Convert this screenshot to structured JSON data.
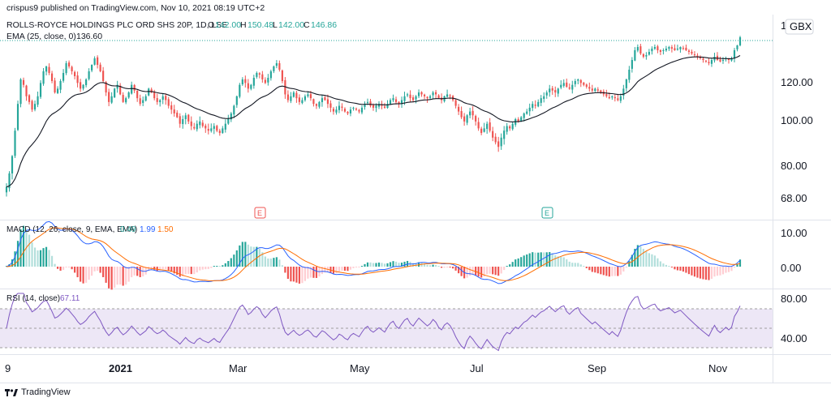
{
  "header": {
    "publisher": "crispus9 published on TradingView.com, Nov 10, 2021 08:19 UTC+2",
    "symbol": "ROLLS-ROYCE HOLDINGS PLC ORD SHS 20P, 1D, LSE",
    "ohlc": {
      "o_label": "O",
      "o": "142.00",
      "h_label": "H",
      "h": "150.48",
      "l_label": "L",
      "l": "142.00",
      "c_label": "C",
      "c": "146.86"
    },
    "ema_label": "EMA (25, close, 0)",
    "ema_value": "136.60",
    "currency": "GBX",
    "currency_prefix": "1"
  },
  "macd": {
    "label": "MACD (12, 26, close, 9, EMA, EMA)",
    "v1": "0.49",
    "v2": "1.99",
    "v3": "1.50"
  },
  "rsi": {
    "label": "RSI (14, close)",
    "value": "67.11"
  },
  "footer": {
    "brand": "TradingView"
  },
  "markers": [
    {
      "letter": "E",
      "kind": "red"
    },
    {
      "letter": "E",
      "kind": "green"
    }
  ],
  "colors": {
    "up": "#26a69a",
    "down": "#ef5350",
    "ema": "#131722",
    "macd": "#2962ff",
    "signal": "#ff6d00",
    "rsi": "#7e57c2",
    "rsi_band": "#ede7f6",
    "grid": "#f0f3fa",
    "axis_text": "#131722"
  },
  "chart_data": [
    {
      "type": "candlestick",
      "title": "ROLLS-ROYCE HOLDINGS PLC ORD SHS 20P, 1D, LSE",
      "ylim": [
        60,
        155
      ],
      "y_ticks": [
        "68.00",
        "80.00",
        "100.00",
        "120.00",
        "1"
      ],
      "x_ticks": [
        "9",
        "2021",
        "Mar",
        "May",
        "Jul",
        "Sep",
        "Nov"
      ],
      "series_close": [
        72,
        77,
        84,
        95,
        108,
        121,
        118,
        112,
        109,
        105,
        108,
        112,
        119,
        126,
        129,
        125,
        120,
        114,
        116,
        120,
        125,
        131,
        129,
        126,
        123,
        119,
        116,
        118,
        121,
        126,
        130,
        134,
        130,
        126,
        120,
        114,
        109,
        112,
        116,
        118,
        113,
        109,
        111,
        114,
        118,
        115,
        111,
        108,
        110,
        112,
        116,
        114,
        111,
        109,
        110,
        112,
        110,
        107,
        105,
        103,
        101,
        98,
        100,
        102,
        99,
        97,
        96,
        98,
        99,
        97,
        96,
        95,
        96,
        97,
        95,
        94,
        96,
        98,
        100,
        103,
        107,
        112,
        118,
        121,
        119,
        116,
        118,
        122,
        125,
        124,
        121,
        119,
        122,
        126,
        129,
        131,
        127,
        120,
        113,
        110,
        112,
        114,
        111,
        109,
        110,
        112,
        113,
        111,
        108,
        107,
        109,
        111,
        110,
        108,
        106,
        104,
        105,
        107,
        106,
        104,
        103,
        105,
        106,
        105,
        104,
        106,
        108,
        109,
        107,
        106,
        107,
        108,
        107,
        106,
        108,
        110,
        111,
        109,
        108,
        110,
        112,
        113,
        111,
        110,
        112,
        114,
        113,
        112,
        111,
        112,
        114,
        113,
        111,
        110,
        112,
        113,
        112,
        110,
        107,
        104,
        101,
        99,
        102,
        104,
        102,
        99,
        96,
        94,
        96,
        98,
        95,
        92,
        90,
        88,
        92,
        95,
        97,
        96,
        98,
        100,
        99,
        101,
        103,
        104,
        106,
        108,
        107,
        109,
        111,
        112,
        114,
        116,
        115,
        114,
        116,
        118,
        119,
        117,
        116,
        118,
        120,
        121,
        119,
        118,
        117,
        116,
        115,
        116,
        115,
        114,
        113,
        112,
        111,
        112,
        111,
        110,
        112,
        116,
        121,
        127,
        133,
        139,
        141,
        137,
        135,
        136,
        138,
        140,
        141,
        139,
        138,
        139,
        140,
        141,
        140,
        139,
        140,
        141,
        140,
        139,
        138,
        137,
        136,
        135,
        134,
        133,
        132,
        131,
        133,
        135,
        133,
        132,
        133,
        134,
        133,
        134,
        139,
        142,
        147
      ],
      "ema": {
        "name": "EMA (25, close, 0)",
        "last": 136.6
      }
    },
    {
      "type": "line",
      "title": "MACD (12, 26, close, 9, EMA, EMA)",
      "ylim": [
        -10,
        12
      ],
      "y_ticks": [
        "10.00",
        "0.00"
      ],
      "series": [
        {
          "name": "MACD",
          "last": 1.99
        },
        {
          "name": "Signal",
          "last": 1.5
        },
        {
          "name": "Histogram",
          "last": 0.49
        }
      ]
    },
    {
      "type": "line",
      "title": "RSI (14, close)",
      "ylim": [
        20,
        85
      ],
      "y_ticks": [
        "80.00",
        "40.00"
      ],
      "bands": [
        30,
        50,
        70
      ],
      "series": [
        {
          "name": "RSI",
          "last": 67.11
        }
      ]
    }
  ]
}
